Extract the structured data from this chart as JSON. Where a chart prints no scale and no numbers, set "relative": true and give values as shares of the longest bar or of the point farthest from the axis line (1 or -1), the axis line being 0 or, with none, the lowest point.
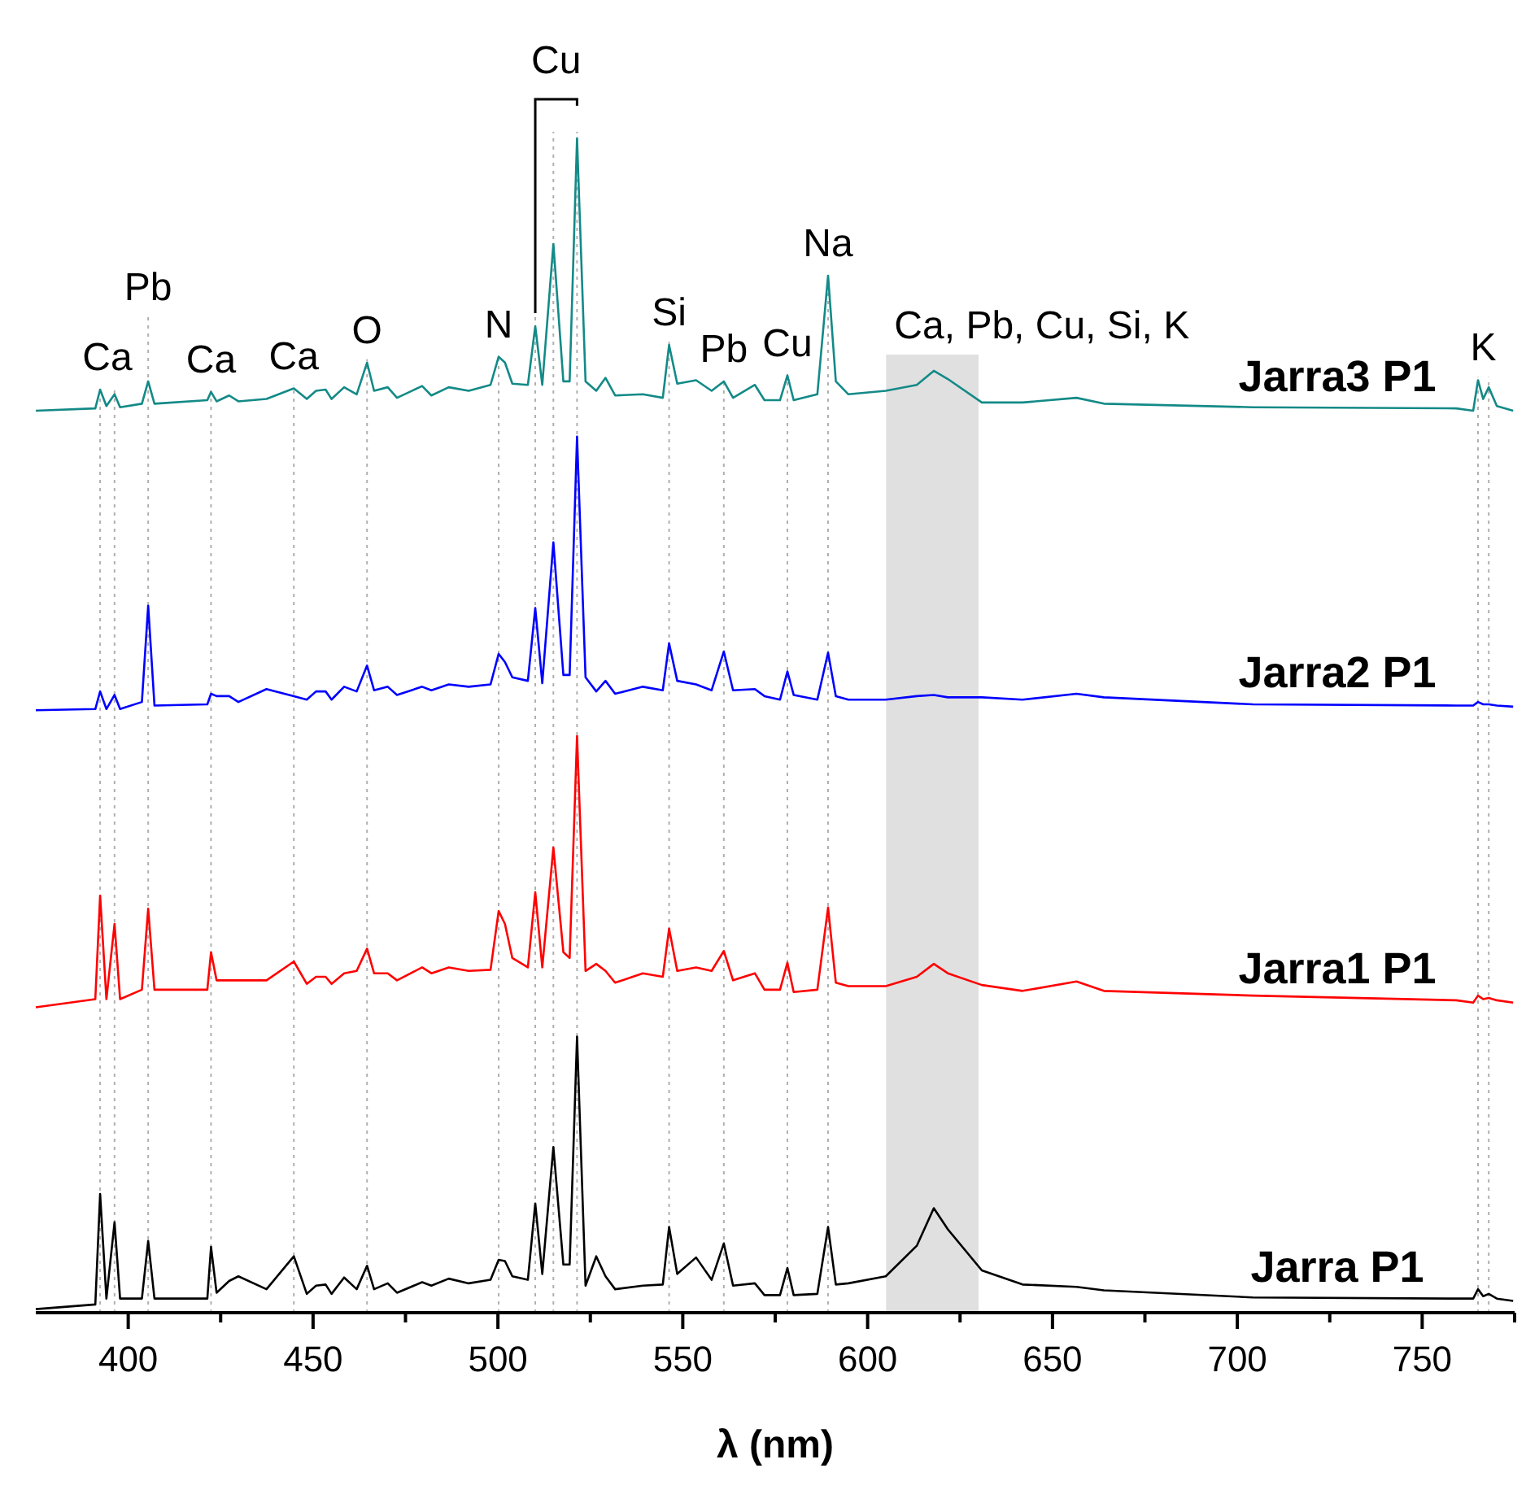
{
  "chart_data": {
    "type": "line",
    "relative": true,
    "xlabel": "λ (nm)",
    "xlim": [
      375,
      775
    ],
    "xticks": [
      400,
      {
        "value": 425,
        "label": null
      },
      450,
      {
        "value": 475,
        "label": null
      },
      500,
      {
        "value": 525,
        "label": null
      },
      550,
      {
        "value": 575,
        "label": null
      },
      600,
      {
        "value": 625,
        "label": null
      },
      650,
      {
        "value": 675,
        "label": null
      },
      700,
      {
        "value": 725,
        "label": null
      },
      750,
      {
        "value": 775,
        "label": null
      }
    ],
    "x": [
      375,
      391.1,
      392.4,
      394.1,
      396.3,
      397.8,
      403.7,
      405.4,
      407.1,
      421.4,
      422.4,
      423.9,
      427.3,
      429.8,
      437.4,
      444.8,
      448.3,
      450.8,
      453.4,
      455.0,
      458.4,
      461.8,
      464.6,
      466.5,
      470.2,
      472.7,
      479.5,
      482.0,
      486.7,
      492.1,
      498.0,
      500.2,
      501.9,
      503.9,
      508.1,
      510.1,
      512.0,
      515.0,
      517.7,
      519.4,
      521.4,
      523.7,
      526.6,
      529.1,
      531.7,
      539.2,
      544.6,
      546.3,
      548.5,
      553.6,
      557.8,
      561.1,
      563.6,
      569.5,
      572.1,
      576.3,
      578.3,
      580.0,
      586.4,
      589.3,
      591.4,
      594.8,
      604.9,
      613.3,
      617.9,
      621.7,
      630.9,
      641.9,
      656.5,
      663.9,
      704.2,
      759.2,
      763.8,
      765.1,
      766.5,
      768.0,
      770.2,
      774.6
    ],
    "series": [
      {
        "name": "Jarra3 P1",
        "color": "#138a87",
        "values": [
          0.768,
          0.77,
          0.786,
          0.772,
          0.782,
          0.771,
          0.774,
          0.793,
          0.774,
          0.777,
          0.784,
          0.776,
          0.781,
          0.776,
          0.778,
          0.787,
          0.778,
          0.785,
          0.786,
          0.778,
          0.788,
          0.782,
          0.809,
          0.785,
          0.788,
          0.779,
          0.789,
          0.781,
          0.788,
          0.785,
          0.79,
          0.814,
          0.809,
          0.791,
          0.79,
          0.84,
          0.79,
          0.91,
          0.793,
          0.793,
          1,
          0.793,
          0.785,
          0.796,
          0.781,
          0.782,
          0.779,
          0.824,
          0.791,
          0.794,
          0.785,
          0.793,
          0.779,
          0.79,
          0.777,
          0.777,
          0.798,
          0.777,
          0.782,
          0.883,
          0.793,
          0.782,
          0.785,
          0.79,
          0.802,
          0.795,
          0.775,
          0.775,
          0.779,
          0.774,
          0.771,
          0.77,
          0.768,
          0.794,
          0.778,
          0.788,
          0.772,
          0.768
        ]
      },
      {
        "name": "Jarra2 P1",
        "color": "#0000ff",
        "values": [
          0.513,
          0.514,
          0.529,
          0.514,
          0.526,
          0.514,
          0.52,
          0.602,
          0.517,
          0.518,
          0.527,
          0.525,
          0.525,
          0.52,
          0.531,
          0.525,
          0.522,
          0.529,
          0.529,
          0.522,
          0.533,
          0.529,
          0.551,
          0.53,
          0.533,
          0.526,
          0.533,
          0.53,
          0.535,
          0.533,
          0.535,
          0.561,
          0.554,
          0.541,
          0.538,
          0.6,
          0.536,
          0.656,
          0.543,
          0.543,
          0.746,
          0.541,
          0.529,
          0.538,
          0.527,
          0.533,
          0.53,
          0.57,
          0.538,
          0.535,
          0.53,
          0.563,
          0.53,
          0.531,
          0.525,
          0.522,
          0.546,
          0.526,
          0.522,
          0.562,
          0.525,
          0.522,
          0.522,
          0.525,
          0.526,
          0.524,
          0.524,
          0.522,
          0.527,
          0.524,
          0.518,
          0.517,
          0.517,
          0.52,
          0.518,
          0.518,
          0.517,
          0.516
        ]
      },
      {
        "name": "Jarra1 P1",
        "color": "#ff0000",
        "values": [
          0.26,
          0.267,
          0.355,
          0.267,
          0.331,
          0.267,
          0.275,
          0.344,
          0.275,
          0.275,
          0.307,
          0.283,
          0.283,
          0.283,
          0.283,
          0.299,
          0.28,
          0.286,
          0.286,
          0.28,
          0.289,
          0.291,
          0.31,
          0.289,
          0.289,
          0.283,
          0.294,
          0.289,
          0.294,
          0.291,
          0.292,
          0.342,
          0.331,
          0.302,
          0.294,
          0.358,
          0.294,
          0.396,
          0.307,
          0.302,
          0.491,
          0.291,
          0.297,
          0.291,
          0.281,
          0.289,
          0.286,
          0.327,
          0.291,
          0.294,
          0.291,
          0.308,
          0.283,
          0.289,
          0.275,
          0.275,
          0.298,
          0.273,
          0.275,
          0.345,
          0.281,
          0.278,
          0.278,
          0.286,
          0.297,
          0.289,
          0.279,
          0.274,
          0.282,
          0.274,
          0.27,
          0.266,
          0.264,
          0.27,
          0.267,
          0.268,
          0.266,
          0.264
        ]
      },
      {
        "name": "Jarra P1",
        "color": "#000000",
        "values": [
          0.003,
          0.007,
          0.101,
          0.012,
          0.077,
          0.012,
          0.012,
          0.061,
          0.012,
          0.012,
          0.056,
          0.017,
          0.027,
          0.031,
          0.02,
          0.048,
          0.016,
          0.023,
          0.024,
          0.016,
          0.03,
          0.02,
          0.04,
          0.02,
          0.025,
          0.017,
          0.026,
          0.023,
          0.029,
          0.025,
          0.028,
          0.045,
          0.044,
          0.031,
          0.028,
          0.093,
          0.033,
          0.141,
          0.041,
          0.041,
          0.235,
          0.023,
          0.048,
          0.031,
          0.02,
          0.023,
          0.024,
          0.073,
          0.033,
          0.047,
          0.028,
          0.059,
          0.023,
          0.025,
          0.015,
          0.015,
          0.038,
          0.015,
          0.016,
          0.073,
          0.024,
          0.025,
          0.031,
          0.057,
          0.089,
          0.071,
          0.036,
          0.024,
          0.022,
          0.019,
          0.013,
          0.012,
          0.012,
          0.02,
          0.014,
          0.016,
          0.012,
          0.01
        ]
      }
    ],
    "ref_lines": [
      {
        "axis": "x",
        "value": 392.4,
        "label": "Ca",
        "color": "#b0b0b0",
        "line_style": "dotted"
      },
      {
        "axis": "x",
        "value": 396.3,
        "label": null,
        "color": "#b0b0b0",
        "line_style": "dotted"
      },
      {
        "axis": "x",
        "value": 405.4,
        "label": "Pb",
        "color": "#b0b0b0",
        "line_style": "dotted"
      },
      {
        "axis": "x",
        "value": 422.4,
        "label": "Ca",
        "color": "#b0b0b0",
        "line_style": "dotted"
      },
      {
        "axis": "x",
        "value": 444.8,
        "label": "Ca",
        "color": "#b0b0b0",
        "line_style": "dotted"
      },
      {
        "axis": "x",
        "value": 464.6,
        "label": "O",
        "color": "#b0b0b0",
        "line_style": "dotted"
      },
      {
        "axis": "x",
        "value": 500.2,
        "label": "N",
        "color": "#b0b0b0",
        "line_style": "dotted"
      },
      {
        "axis": "x",
        "value": 510.1,
        "label": "Cu",
        "color": "#b0b0b0",
        "line_style": "dotted"
      },
      {
        "axis": "x",
        "value": 515.0,
        "label": null,
        "color": "#b0b0b0",
        "line_style": "dotted"
      },
      {
        "axis": "x",
        "value": 521.4,
        "label": null,
        "color": "#b0b0b0",
        "line_style": "dotted"
      },
      {
        "axis": "x",
        "value": 546.3,
        "label": "Si",
        "color": "#b0b0b0",
        "line_style": "dotted"
      },
      {
        "axis": "x",
        "value": 561.1,
        "label": "Pb",
        "color": "#b0b0b0",
        "line_style": "dotted"
      },
      {
        "axis": "x",
        "value": 578.3,
        "label": "Cu",
        "color": "#b0b0b0",
        "line_style": "dotted"
      },
      {
        "axis": "x",
        "value": 589.3,
        "label": "Na",
        "color": "#b0b0b0",
        "line_style": "dotted"
      },
      {
        "axis": "x",
        "value": 765.1,
        "label": "K",
        "color": "#b0b0b0",
        "line_style": "dotted"
      },
      {
        "axis": "x",
        "value": 768.0,
        "label": null,
        "color": "#b0b0b0",
        "line_style": "dotted"
      }
    ],
    "bands": [
      {
        "axis": "x",
        "from": 605,
        "to": 630,
        "label": "Ca, Pb, Cu, Si, K",
        "color": "#e0e0e0"
      }
    ]
  }
}
